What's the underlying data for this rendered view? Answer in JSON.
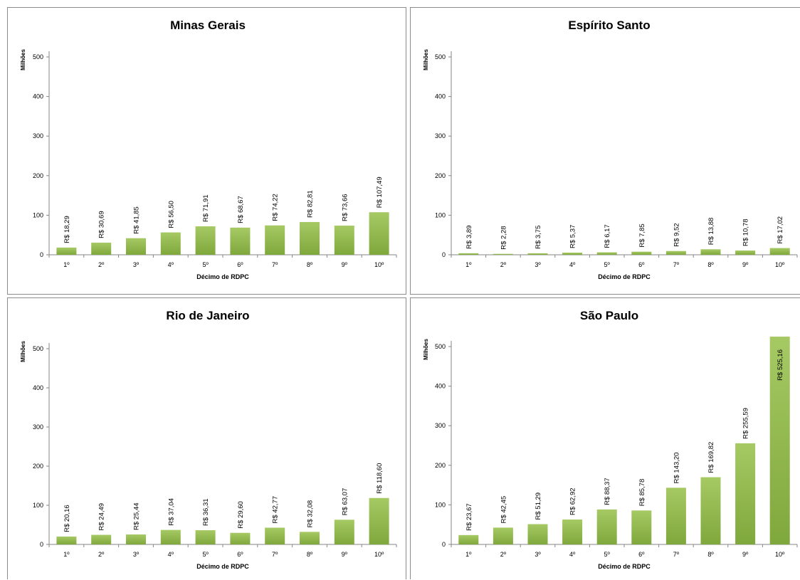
{
  "colors": {
    "bar_top": "#a6c964",
    "bar_bottom": "#7fa83c",
    "axis": "#868686"
  },
  "chart_data": [
    {
      "type": "bar",
      "title": "Minas Gerais",
      "ylabel": "Milhões",
      "xlabel": "Décimo de RDPC",
      "ylim": [
        0,
        500
      ],
      "yticks": [
        "0",
        "100",
        "200",
        "300",
        "400",
        "500"
      ],
      "categories": [
        "1º",
        "2º",
        "3º",
        "4º",
        "5º",
        "6º",
        "7º",
        "8º",
        "9º",
        "10º"
      ],
      "values": [
        18.29,
        30.69,
        41.85,
        56.5,
        71.91,
        68.67,
        74.22,
        82.81,
        73.66,
        107.49
      ],
      "labels": [
        "R$ 18,29",
        "R$ 30,69",
        "R$ 41,85",
        "R$ 56,50",
        "R$ 71,91",
        "R$ 68,67",
        "R$ 74,22",
        "R$ 82,81",
        "R$ 73,66",
        "R$ 107,49"
      ]
    },
    {
      "type": "bar",
      "title": "Espírito Santo",
      "ylabel": "Milhões",
      "xlabel": "Décimo de RDPC",
      "ylim": [
        0,
        500
      ],
      "yticks": [
        "0",
        "100",
        "200",
        "300",
        "400",
        "500"
      ],
      "categories": [
        "1º",
        "2º",
        "3º",
        "4º",
        "5º",
        "6º",
        "7º",
        "8º",
        "9º",
        "10º"
      ],
      "values": [
        3.89,
        2.28,
        3.75,
        5.37,
        6.17,
        7.85,
        9.52,
        13.88,
        10.78,
        17.02
      ],
      "labels": [
        "R$ 3,89",
        "R$ 2,28",
        "R$ 3,75",
        "R$ 5,37",
        "R$ 6,17",
        "R$ 7,85",
        "R$ 9,52",
        "R$ 13,88",
        "R$ 10,78",
        "R$ 17,02"
      ]
    },
    {
      "type": "bar",
      "title": "Rio de Janeiro",
      "ylabel": "Milhões",
      "xlabel": "Décimo de RDPC",
      "ylim": [
        0,
        500
      ],
      "yticks": [
        "0",
        "100",
        "200",
        "300",
        "400",
        "500"
      ],
      "categories": [
        "1º",
        "2º",
        "3º",
        "4º",
        "5º",
        "6º",
        "7º",
        "8º",
        "9º",
        "10º"
      ],
      "values": [
        20.16,
        24.49,
        25.44,
        37.04,
        36.31,
        29.6,
        42.77,
        32.08,
        63.07,
        118.6
      ],
      "labels": [
        "R$ 20,16",
        "R$ 24,49",
        "R$ 25,44",
        "R$ 37,04",
        "R$ 36,31",
        "R$ 29,60",
        "R$ 42,77",
        "R$ 32,08",
        "R$ 63,07",
        "R$ 118,60"
      ]
    },
    {
      "type": "bar",
      "title": "São Paulo",
      "ylabel": "Milhões",
      "xlabel": "Décimo de RDPC",
      "ylim": [
        0,
        500
      ],
      "yticks": [
        "0",
        "100",
        "200",
        "300",
        "400",
        "500"
      ],
      "categories": [
        "1º",
        "2º",
        "3º",
        "4º",
        "5º",
        "6º",
        "7º",
        "8º",
        "9º",
        "10º"
      ],
      "values": [
        23.67,
        42.45,
        51.29,
        62.92,
        88.37,
        85.78,
        143.2,
        169.82,
        255.59,
        525.16
      ],
      "labels": [
        "R$ 23,67",
        "R$ 42,45",
        "R$ 51,29",
        "R$ 62,92",
        "R$ 88,37",
        "R$ 85,78",
        "R$ 143,20",
        "R$ 169,82",
        "R$ 255,59",
        "R$ 525,16"
      ]
    }
  ]
}
